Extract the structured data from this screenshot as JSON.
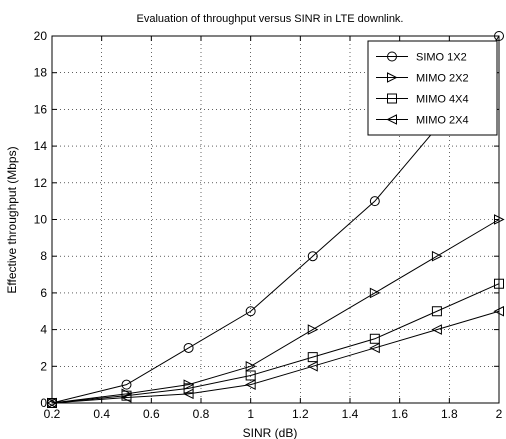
{
  "chart_data": {
    "type": "line",
    "title": "Evaluation of throughput versus SINR in LTE downlink.",
    "xlabel": "SINR (dB)",
    "ylabel": "Effective throughput (Mbps)",
    "xlim": [
      0.2,
      2
    ],
    "ylim": [
      0,
      20
    ],
    "xticks": [
      0.2,
      0.4,
      0.6,
      0.8,
      1,
      1.2,
      1.4,
      1.6,
      1.8,
      2
    ],
    "xtick_labels": [
      "0.2",
      "0.4",
      "0.6",
      "0.8",
      "1",
      "1.2",
      "1.4",
      "1.6",
      "1.8",
      "2"
    ],
    "yticks": [
      0,
      2,
      4,
      6,
      8,
      10,
      12,
      14,
      16,
      18,
      20
    ],
    "ytick_labels": [
      "0",
      "2",
      "4",
      "6",
      "8",
      "10",
      "12",
      "14",
      "16",
      "18",
      "20"
    ],
    "grid": true,
    "legend_position": "top-right",
    "line_color": "#000000",
    "x": [
      0.2,
      0.5,
      0.75,
      1,
      1.25,
      1.5,
      1.75,
      2
    ],
    "series": [
      {
        "name": "SIMO 1X2",
        "marker": "circle",
        "values": [
          0,
          1,
          3,
          5,
          8,
          11,
          15,
          20
        ]
      },
      {
        "name": "MIMO 2X2",
        "marker": "triangle-right",
        "values": [
          0,
          0.5,
          1,
          2,
          4,
          6,
          8,
          10
        ]
      },
      {
        "name": "MIMO 4X4",
        "marker": "square",
        "values": [
          0,
          0.4,
          0.8,
          1.5,
          2.5,
          3.5,
          5,
          6.5
        ]
      },
      {
        "name": "MIMO 2X4",
        "marker": "triangle-left",
        "values": [
          0,
          0.3,
          0.5,
          1,
          2,
          3,
          4,
          5
        ]
      }
    ]
  }
}
